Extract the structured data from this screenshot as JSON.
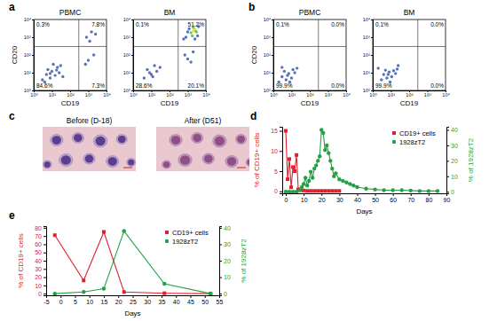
{
  "chart_data": [
    {
      "type": "scatter",
      "panel": "a",
      "title": "PBMC",
      "xlabel": "CD19",
      "ylabel": "CD20",
      "log": true,
      "xlim": [
        1,
        10000
      ],
      "ylim": [
        1,
        10000
      ],
      "xticks": [
        {
          "value": 1,
          "label": "10⁰"
        },
        {
          "value": 10,
          "label": "10¹"
        },
        {
          "value": 100,
          "label": "10²"
        },
        {
          "value": 1000,
          "label": "10³"
        },
        {
          "value": 10000,
          "label": "10⁴"
        }
      ],
      "yticks": [
        {
          "value": 1,
          "label": "10⁰"
        },
        {
          "value": 10,
          "label": "10¹"
        },
        {
          "value": 100,
          "label": "10²"
        },
        {
          "value": 1000,
          "label": "10³"
        },
        {
          "value": 10000,
          "label": "10⁴"
        }
      ],
      "gate_x": 300,
      "gate_y": 300,
      "quadrants": {
        "values": [
          0.3,
          7.8,
          84.6,
          7.3
        ],
        "value_labels": [
          "0.3%",
          "7.8%",
          "84.6%",
          "7.3%"
        ]
      },
      "series": [
        {
          "color": "#3a5bb0",
          "x": [
            3,
            5,
            8,
            10,
            15,
            6,
            20,
            12,
            4,
            25,
            8,
            30,
            18,
            40,
            800,
            1500,
            1200,
            2500,
            1000,
            2000,
            700
          ],
          "values": [
            4,
            8,
            5,
            12,
            7,
            15,
            20,
            30,
            3,
            10,
            9,
            25,
            14,
            6,
            1000,
            2000,
            600,
            1500,
            50,
            100,
            30
          ]
        }
      ]
    },
    {
      "type": "scatter",
      "title": "BM",
      "xlabel": "CD19",
      "log": true,
      "xlim": [
        1,
        10000
      ],
      "ylim": [
        1,
        10000
      ],
      "xticks": [
        {
          "value": 1,
          "label": "10⁰"
        },
        {
          "value": 10,
          "label": "10¹"
        },
        {
          "value": 100,
          "label": "10²"
        },
        {
          "value": 1000,
          "label": "10³"
        },
        {
          "value": 10000,
          "label": "10⁴"
        }
      ],
      "yticks": [
        {
          "value": 1,
          "label": "10⁰"
        },
        {
          "value": 10,
          "label": "10¹"
        },
        {
          "value": 100,
          "label": "10²"
        },
        {
          "value": 1000,
          "label": "10³"
        },
        {
          "value": 10000,
          "label": "10⁴"
        }
      ],
      "gate_x": 300,
      "gate_y": 300,
      "quadrants": {
        "values": [
          0.1,
          51.2,
          28.6,
          20.1
        ],
        "value_labels": [
          "0.1%",
          "51.2%",
          "28.6%",
          "20.1%"
        ]
      },
      "series": [
        {
          "color": "#3a5bb0",
          "x": [
            4,
            8,
            12,
            6,
            20,
            15,
            10,
            30,
            800,
            1200,
            4000,
            600,
            3500,
            1000,
            2500,
            1000,
            2000,
            700,
            1500
          ],
          "values": [
            5,
            10,
            6,
            15,
            12,
            25,
            8,
            20,
            1000,
            3000,
            4000,
            800,
            1200,
            2000,
            800,
            60,
            150,
            100,
            40
          ]
        },
        {
          "color": "#4cb848",
          "x": [
            1500,
            2500,
            2000,
            3000,
            1800
          ],
          "values": [
            1800,
            2500,
            3500,
            2000,
            1200
          ]
        },
        {
          "color": "#e2e03a",
          "x": [
            2000,
            2400
          ],
          "values": [
            2200,
            2700
          ]
        }
      ]
    },
    {
      "type": "scatter",
      "panel": "b",
      "title": "PBMC",
      "xlabel": "CD19",
      "ylabel": "CD20",
      "log": true,
      "xlim": [
        1,
        10000
      ],
      "ylim": [
        1,
        10000
      ],
      "xticks": [
        {
          "value": 1,
          "label": "10⁰"
        },
        {
          "value": 10,
          "label": "10¹"
        },
        {
          "value": 100,
          "label": "10²"
        },
        {
          "value": 1000,
          "label": "10³"
        },
        {
          "value": 10000,
          "label": "10⁴"
        }
      ],
      "yticks": [
        {
          "value": 1,
          "label": "10⁰"
        },
        {
          "value": 10,
          "label": "10¹"
        },
        {
          "value": 100,
          "label": "10²"
        },
        {
          "value": 1000,
          "label": "10³"
        },
        {
          "value": 10000,
          "label": "10⁴"
        }
      ],
      "gate_x": 300,
      "gate_y": 300,
      "quadrants": {
        "values": [
          0.1,
          0.0,
          99.9,
          0.0
        ],
        "value_labels": [
          "0.1%",
          "0.0%",
          "99.9%",
          "0.0%"
        ]
      },
      "series": [
        {
          "color": "#3a5bb0",
          "x": [
            2,
            3,
            5,
            7,
            4,
            10,
            12,
            6,
            15,
            8,
            20,
            3
          ],
          "values": [
            3,
            6,
            4,
            9,
            12,
            5,
            15,
            7,
            10,
            3,
            18,
            20
          ]
        }
      ]
    },
    {
      "type": "scatter",
      "title": "BM",
      "xlabel": "CD19",
      "log": true,
      "xlim": [
        1,
        10000
      ],
      "ylim": [
        1,
        10000
      ],
      "xticks": [
        {
          "value": 1,
          "label": "10⁰"
        },
        {
          "value": 10,
          "label": "10¹"
        },
        {
          "value": 100,
          "label": "10²"
        },
        {
          "value": 1000,
          "label": "10³"
        },
        {
          "value": 10000,
          "label": "10⁴"
        }
      ],
      "yticks": [
        {
          "value": 1,
          "label": "10⁰"
        },
        {
          "value": 10,
          "label": "10¹"
        },
        {
          "value": 100,
          "label": "10²"
        },
        {
          "value": 1000,
          "label": "10³"
        },
        {
          "value": 10000,
          "label": "10⁴"
        }
      ],
      "gate_x": 300,
      "gate_y": 300,
      "quadrants": {
        "values": [
          0.1,
          0.0,
          99.9,
          0.0
        ],
        "value_labels": [
          "0.1%",
          "0.0%",
          "99.9%",
          "0.0%"
        ]
      },
      "series": [
        {
          "color": "#3a5bb0",
          "x": [
            3,
            4,
            6,
            8,
            5,
            11,
            14,
            7,
            18,
            9,
            22,
            2,
            25
          ],
          "values": [
            4,
            8,
            5,
            11,
            14,
            6,
            13,
            8,
            9,
            3,
            16,
            18,
            25
          ]
        }
      ]
    },
    {
      "type": "image",
      "panel": "c",
      "title": "Before (D-18)"
    },
    {
      "type": "image",
      "title": "After (D51)"
    },
    {
      "type": "line",
      "panel": "d",
      "xlabel": "Days",
      "ylabel": "% of CD19+ cells",
      "y2label": "% of 1928zT2",
      "xlim": [
        -2,
        90
      ],
      "ylim": [
        -0.5,
        16
      ],
      "y2lim": [
        -1,
        42
      ],
      "xticks": [
        0,
        10,
        20,
        30,
        40,
        50,
        60,
        70,
        80,
        90
      ],
      "yticks": [
        0,
        5,
        10,
        15
      ],
      "y2ticks": [
        0,
        10,
        20,
        30,
        40
      ],
      "legend": "top-right",
      "series": [
        {
          "name": "CD19+ cells",
          "color": "#e0202a",
          "marker": "square",
          "x": [
            0,
            1,
            2,
            3,
            4,
            5,
            6,
            7,
            8,
            10,
            12,
            14,
            16,
            18,
            20,
            22,
            24,
            26,
            28,
            30
          ],
          "values": [
            15,
            3,
            8,
            1,
            6,
            5,
            9,
            0.5,
            0.3,
            0.2,
            0.1,
            0.1,
            0.1,
            0.1,
            0.1,
            0.1,
            0.1,
            0.1,
            0.1,
            0.1
          ]
        },
        {
          "name": "1928zT2",
          "color": "#22a045",
          "marker": "circle",
          "axis": "y2",
          "x": [
            0,
            2,
            4,
            6,
            8,
            9,
            10,
            11,
            12,
            13,
            14,
            15,
            16,
            17,
            18,
            19,
            20,
            21,
            22,
            23,
            24,
            25,
            26,
            27,
            28,
            30,
            32,
            34,
            36,
            38,
            40,
            45,
            50,
            55,
            60,
            65,
            70,
            75,
            80,
            85
          ],
          "values": [
            0,
            0,
            0,
            0,
            1,
            3,
            5,
            9,
            4,
            7,
            13,
            9,
            15,
            17,
            20,
            23,
            40,
            38,
            27,
            30,
            25,
            20,
            15,
            10,
            12,
            8,
            7,
            6,
            5,
            4,
            3,
            2,
            1.5,
            1,
            1,
            1,
            0.8,
            0.5,
            0.5,
            0.5
          ]
        }
      ]
    },
    {
      "type": "line",
      "panel": "e",
      "xlabel": "Days",
      "ylabel": "% of CD19+ cells",
      "y2label": "% of 1928zT2",
      "xlim": [
        -5,
        55
      ],
      "ylim": [
        -2,
        82
      ],
      "y2lim": [
        -1,
        41
      ],
      "xticks": [
        -5,
        0,
        5,
        10,
        15,
        20,
        25,
        30,
        35,
        40,
        45,
        50,
        55
      ],
      "yticks": [
        0,
        10,
        20,
        30,
        40,
        50,
        60,
        70,
        80
      ],
      "y2ticks": [
        0,
        10,
        20,
        30,
        40
      ],
      "legend": "top-right",
      "series": [
        {
          "name": "CD19+ cells",
          "color": "#e0202a",
          "marker": "square",
          "x": [
            -2,
            8,
            15,
            22,
            36,
            52
          ],
          "values": [
            71,
            16,
            75,
            2,
            0.5,
            0
          ]
        },
        {
          "name": "1928zT2",
          "color": "#22a045",
          "marker": "circle",
          "axis": "y2",
          "x": [
            -2,
            8,
            15,
            22,
            36,
            52
          ],
          "values": [
            0,
            1,
            3,
            38,
            6,
            0
          ]
        }
      ]
    }
  ]
}
